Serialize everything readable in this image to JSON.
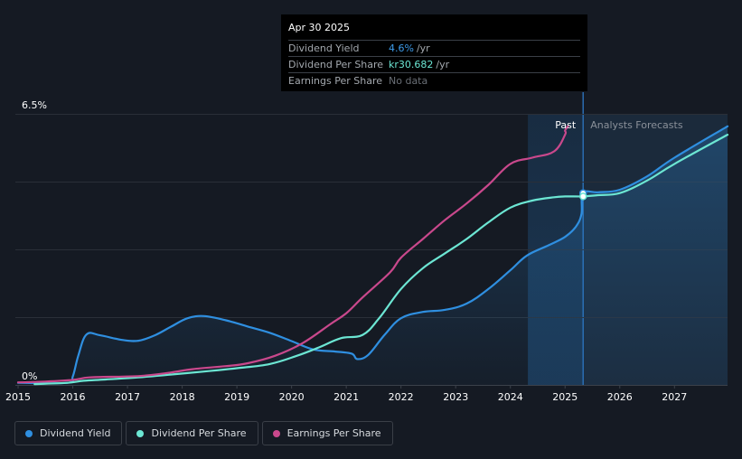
{
  "colors": {
    "background": "#151a23",
    "dividend_yield": "#2f8fe0",
    "dividend_per_share": "#6ce6d3",
    "earnings_per_share": "#c9488c",
    "forecast_region": "#1b2a3b"
  },
  "tooltip": {
    "date": "Apr 30 2025",
    "rows": [
      {
        "label": "Dividend Yield",
        "value": "4.6%",
        "unit": "/yr"
      },
      {
        "label": "Dividend Per Share",
        "value": "kr30.682",
        "unit": "/yr"
      },
      {
        "label": "Earnings Per Share",
        "value": "No data",
        "unit": ""
      }
    ]
  },
  "regions": {
    "past_label": "Past",
    "forecast_label": "Analysts Forecasts"
  },
  "legend": [
    {
      "label": "Dividend Yield",
      "icon": "dividend-yield-dot"
    },
    {
      "label": "Dividend Per Share",
      "icon": "dividend-per-share-dot"
    },
    {
      "label": "Earnings Per Share",
      "icon": "earnings-per-share-dot"
    }
  ],
  "chart_data": {
    "type": "line",
    "title": "",
    "xlabel": "",
    "ylabel": "",
    "x_ticks": [
      "2015",
      "2016",
      "2017",
      "2018",
      "2019",
      "2020",
      "2021",
      "2022",
      "2023",
      "2024",
      "2025",
      "2026",
      "2027"
    ],
    "y_ticks": [
      "6.5%",
      "0%"
    ],
    "xlim": [
      2014.95,
      2027.97
    ],
    "ylim": [
      0,
      6.5
    ],
    "past_end": 2025.33,
    "highlight_start": 2024.32,
    "series": [
      {
        "name": "Dividend Yield",
        "unit": "%",
        "x": [
          2015.0,
          2015.9,
          2016.0,
          2016.1,
          2016.25,
          2016.5,
          2016.9,
          2017.2,
          2017.5,
          2017.8,
          2018.1,
          2018.4,
          2018.8,
          2019.2,
          2019.6,
          2020.0,
          2020.4,
          2020.8,
          2021.1,
          2021.2,
          2021.4,
          2021.7,
          2022.0,
          2022.4,
          2022.8,
          2023.2,
          2023.6,
          2024.0,
          2024.3,
          2024.7,
          2025.0,
          2025.2,
          2025.3,
          2025.33,
          2025.6,
          2026.0,
          2026.5,
          2027.0,
          2027.97
        ],
        "y": [
          0.05,
          0.05,
          0.2,
          0.7,
          1.21,
          1.19,
          1.08,
          1.06,
          1.19,
          1.4,
          1.6,
          1.65,
          1.55,
          1.4,
          1.25,
          1.05,
          0.85,
          0.8,
          0.75,
          0.62,
          0.72,
          1.2,
          1.6,
          1.75,
          1.8,
          1.95,
          2.3,
          2.75,
          3.1,
          3.35,
          3.55,
          3.8,
          4.1,
          4.6,
          4.62,
          4.68,
          5.0,
          5.45,
          6.2
        ]
      },
      {
        "name": "Dividend Per Share",
        "unit": "SEK",
        "x": [
          2015.3,
          2015.9,
          2016.2,
          2016.6,
          2017.2,
          2017.8,
          2018.4,
          2019.0,
          2019.6,
          2020.1,
          2020.5,
          2020.9,
          2021.3,
          2021.6,
          2022.0,
          2022.4,
          2022.8,
          2023.2,
          2023.6,
          2024.0,
          2024.4,
          2024.8,
          2025.0,
          2025.33,
          2025.6,
          2026.0,
          2026.5,
          2027.0,
          2027.97
        ],
        "y": [
          0.02,
          0.05,
          0.1,
          0.13,
          0.18,
          0.25,
          0.32,
          0.4,
          0.5,
          0.7,
          0.9,
          1.12,
          1.2,
          1.6,
          2.3,
          2.8,
          3.15,
          3.5,
          3.9,
          4.25,
          4.42,
          4.5,
          4.52,
          4.52,
          4.55,
          4.6,
          4.9,
          5.3,
          6.0
        ]
      },
      {
        "name": "Earnings Per Share",
        "unit": "SEK",
        "x": [
          2015.0,
          2015.5,
          2016.0,
          2016.3,
          2016.9,
          2017.3,
          2017.8,
          2018.2,
          2018.8,
          2019.2,
          2019.7,
          2020.2,
          2020.7,
          2021.0,
          2021.3,
          2021.8,
          2022.0,
          2022.4,
          2022.8,
          2023.2,
          2023.6,
          2024.0,
          2024.4,
          2024.8,
          2025.0,
          2025.0,
          2025.05
        ],
        "y": [
          0.06,
          0.08,
          0.12,
          0.18,
          0.2,
          0.22,
          0.3,
          0.38,
          0.45,
          0.52,
          0.7,
          1.0,
          1.45,
          1.72,
          2.1,
          2.7,
          3.05,
          3.5,
          3.95,
          4.35,
          4.8,
          5.3,
          5.45,
          5.6,
          6.0,
          6.1,
          6.2
        ]
      }
    ]
  }
}
